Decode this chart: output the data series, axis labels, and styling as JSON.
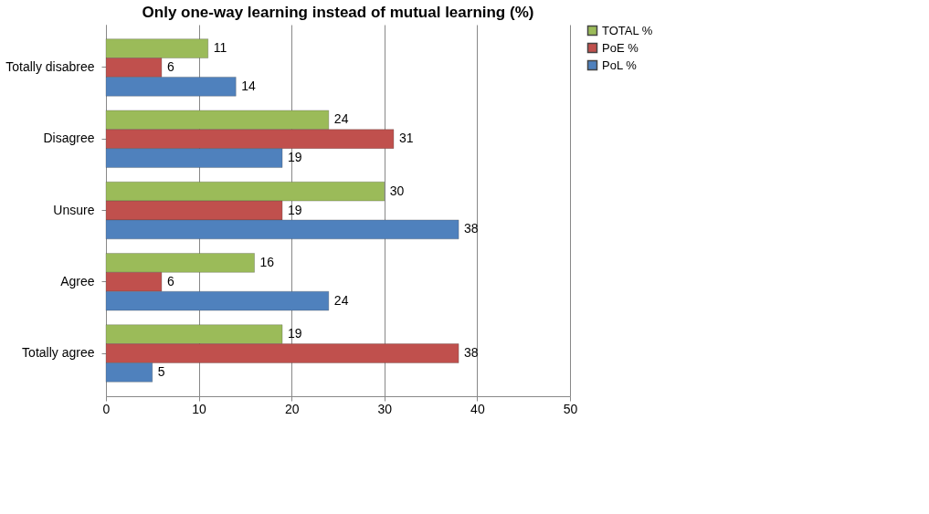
{
  "chart_data": {
    "type": "bar",
    "orientation": "horizontal",
    "title": "Only one-way learning instead of mutual learning (%)",
    "categories": [
      "Totally disabree",
      "Disagree",
      "Unsure",
      "Agree",
      "Totally agree"
    ],
    "series": [
      {
        "name": "TOTAL %",
        "color": "#9bbb59",
        "values": [
          11,
          24,
          30,
          16,
          19
        ]
      },
      {
        "name": "PoE %",
        "color": "#c0504d",
        "values": [
          6,
          31,
          19,
          6,
          38
        ]
      },
      {
        "name": "PoL %",
        "color": "#4f81bd",
        "values": [
          14,
          19,
          38,
          24,
          5
        ]
      }
    ],
    "xlim": [
      0,
      50
    ],
    "xticks": [
      0,
      10,
      20,
      30,
      40,
      50
    ],
    "grid": "x",
    "legend": "right",
    "data_labels": true
  }
}
